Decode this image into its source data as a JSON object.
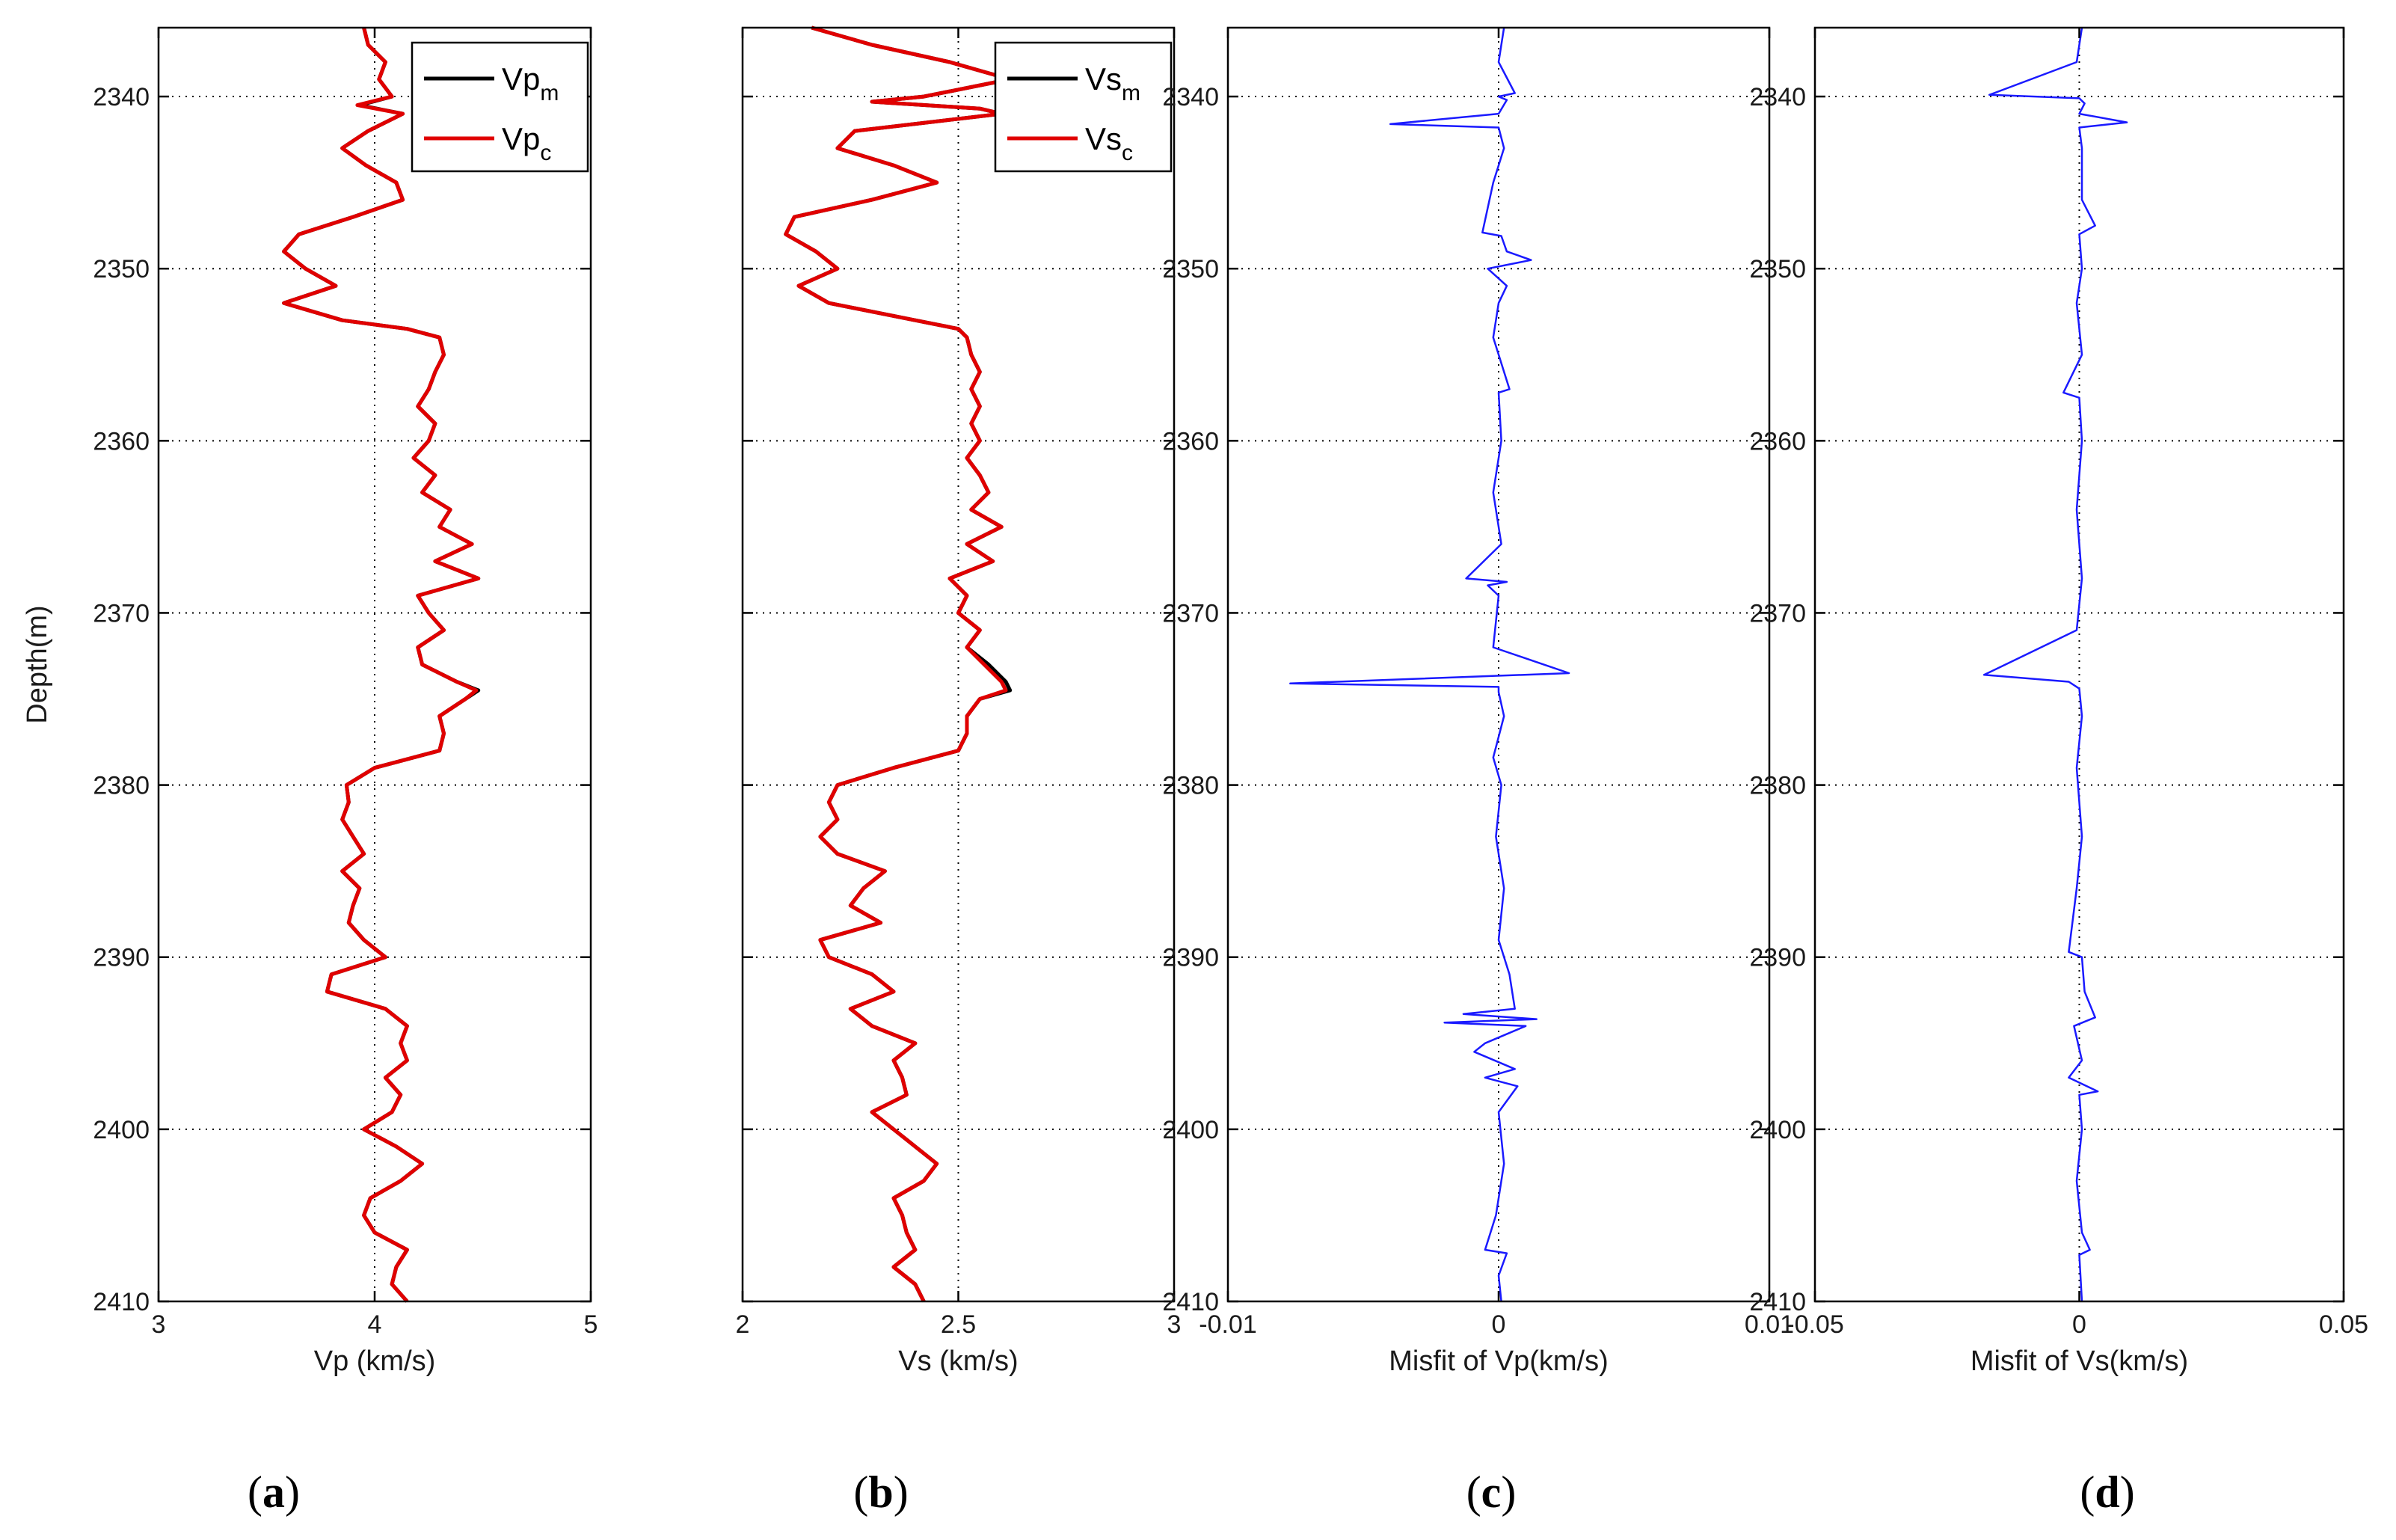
{
  "figure": {
    "ylabel": "Depth(m)",
    "colors": {
      "measured": "#000000",
      "computed": "#e00000",
      "misfit": "#1a1aff",
      "grid": "#000000"
    }
  },
  "chart_data": [
    {
      "id": "a",
      "type": "line",
      "panel_label": "(a)",
      "panel_letter": "a",
      "xlabel": "Vp (km/s)",
      "ylabel": "Depth(m)",
      "xlim": [
        3,
        5
      ],
      "ylim": [
        2336,
        2410
      ],
      "y_reversed": true,
      "xticks": [
        3,
        4,
        5
      ],
      "xtick_labels": [
        "3",
        "4",
        "5"
      ],
      "yticks": [
        2340,
        2350,
        2360,
        2370,
        2380,
        2390,
        2400,
        2410
      ],
      "ytick_labels": [
        "2340",
        "2350",
        "2360",
        "2370",
        "2380",
        "2390",
        "2400",
        "2410"
      ],
      "grid": true,
      "legend": {
        "position": "top-right",
        "entries": [
          {
            "base": "Vp",
            "sub": "m",
            "color": "#000000"
          },
          {
            "base": "Vp",
            "sub": "c",
            "color": "#e00000"
          }
        ]
      },
      "depth": [
        2336,
        2337,
        2338,
        2339,
        2340,
        2340.5,
        2341,
        2342,
        2343,
        2344,
        2345,
        2346,
        2347,
        2348,
        2349,
        2350,
        2351,
        2352,
        2353,
        2353.5,
        2354,
        2355,
        2356,
        2357,
        2358,
        2359,
        2360,
        2361,
        2362,
        2363,
        2364,
        2365,
        2366,
        2367,
        2368,
        2369,
        2370,
        2371,
        2372,
        2373,
        2374,
        2374.5,
        2375,
        2376,
        2377,
        2378,
        2379,
        2380,
        2381,
        2382,
        2383,
        2384,
        2385,
        2386,
        2387,
        2388,
        2389,
        2390,
        2391,
        2392,
        2393,
        2394,
        2395,
        2396,
        2397,
        2398,
        2399,
        2400,
        2401,
        2402,
        2403,
        2404,
        2405,
        2406,
        2407,
        2408,
        2409,
        2410
      ],
      "series": [
        {
          "name": "Vp_m",
          "values": [
            3.95,
            3.97,
            4.05,
            4.02,
            4.08,
            3.93,
            4.13,
            3.97,
            3.85,
            3.96,
            4.1,
            4.13,
            3.9,
            3.65,
            3.58,
            3.68,
            3.82,
            3.58,
            3.85,
            4.15,
            4.3,
            4.32,
            4.28,
            4.25,
            4.2,
            4.28,
            4.25,
            4.18,
            4.28,
            4.22,
            4.35,
            4.3,
            4.45,
            4.28,
            4.48,
            4.2,
            4.25,
            4.32,
            4.2,
            4.22,
            4.38,
            4.48,
            4.42,
            4.3,
            4.32,
            4.3,
            4.0,
            3.87,
            3.88,
            3.85,
            3.9,
            3.95,
            3.85,
            3.93,
            3.9,
            3.88,
            3.95,
            4.05,
            3.8,
            3.78,
            4.05,
            4.15,
            4.12,
            4.15,
            4.05,
            4.12,
            4.08,
            3.95,
            4.1,
            4.22,
            4.12,
            3.98,
            3.95,
            4.0,
            4.15,
            4.1,
            4.08,
            4.15
          ]
        },
        {
          "name": "Vp_c",
          "values": [
            3.95,
            3.97,
            4.05,
            4.02,
            4.08,
            3.92,
            4.13,
            3.97,
            3.85,
            3.96,
            4.1,
            4.13,
            3.9,
            3.65,
            3.58,
            3.68,
            3.82,
            3.58,
            3.85,
            4.15,
            4.3,
            4.32,
            4.28,
            4.25,
            4.2,
            4.28,
            4.25,
            4.18,
            4.28,
            4.22,
            4.35,
            4.3,
            4.45,
            4.28,
            4.48,
            4.2,
            4.25,
            4.32,
            4.2,
            4.22,
            4.38,
            4.47,
            4.42,
            4.3,
            4.32,
            4.3,
            4.0,
            3.87,
            3.88,
            3.85,
            3.9,
            3.95,
            3.85,
            3.93,
            3.9,
            3.88,
            3.95,
            4.05,
            3.8,
            3.78,
            4.05,
            4.15,
            4.12,
            4.15,
            4.05,
            4.12,
            4.08,
            3.95,
            4.1,
            4.22,
            4.12,
            3.98,
            3.95,
            4.0,
            4.15,
            4.1,
            4.08,
            4.15
          ]
        }
      ]
    },
    {
      "id": "b",
      "type": "line",
      "panel_label": "(b)",
      "panel_letter": "b",
      "xlabel": "Vs (km/s)",
      "ylabel": "",
      "xlim": [
        2,
        3
      ],
      "ylim": [
        2336,
        2410
      ],
      "y_reversed": true,
      "xticks": [
        2,
        2.5,
        3
      ],
      "xtick_labels": [
        "2",
        "2.5",
        "3"
      ],
      "yticks": [
        2340,
        2350,
        2360,
        2370,
        2380,
        2390,
        2400,
        2410
      ],
      "ytick_labels": [],
      "grid": true,
      "legend": {
        "position": "top-right",
        "entries": [
          {
            "base": "Vs",
            "sub": "m",
            "color": "#000000"
          },
          {
            "base": "Vs",
            "sub": "c",
            "color": "#e00000"
          }
        ]
      },
      "depth": [
        2336,
        2337,
        2338,
        2339,
        2340,
        2340.3,
        2340.7,
        2341,
        2342,
        2343,
        2344,
        2345,
        2346,
        2347,
        2348,
        2349,
        2350,
        2351,
        2352,
        2353,
        2353.5,
        2354,
        2355,
        2356,
        2357,
        2358,
        2359,
        2360,
        2361,
        2362,
        2363,
        2364,
        2365,
        2366,
        2367,
        2368,
        2369,
        2370,
        2371,
        2372,
        2373,
        2374,
        2374.5,
        2375,
        2376,
        2377,
        2378,
        2379,
        2380,
        2381,
        2382,
        2383,
        2384,
        2385,
        2386,
        2387,
        2388,
        2389,
        2390,
        2391,
        2392,
        2393,
        2394,
        2395,
        2396,
        2397,
        2398,
        2399,
        2400,
        2401,
        2402,
        2403,
        2404,
        2405,
        2406,
        2407,
        2408,
        2409,
        2410
      ],
      "series": [
        {
          "name": "Vs_m",
          "values": [
            2.16,
            2.3,
            2.48,
            2.62,
            2.42,
            2.3,
            2.55,
            2.6,
            2.26,
            2.22,
            2.35,
            2.45,
            2.3,
            2.12,
            2.1,
            2.17,
            2.22,
            2.13,
            2.2,
            2.4,
            2.5,
            2.52,
            2.53,
            2.55,
            2.53,
            2.55,
            2.53,
            2.55,
            2.52,
            2.55,
            2.57,
            2.53,
            2.6,
            2.52,
            2.58,
            2.48,
            2.52,
            2.5,
            2.55,
            2.52,
            2.57,
            2.61,
            2.62,
            2.55,
            2.52,
            2.52,
            2.5,
            2.35,
            2.22,
            2.2,
            2.22,
            2.18,
            2.22,
            2.33,
            2.28,
            2.25,
            2.32,
            2.18,
            2.2,
            2.3,
            2.35,
            2.25,
            2.3,
            2.4,
            2.35,
            2.37,
            2.38,
            2.3,
            2.35,
            2.4,
            2.45,
            2.42,
            2.35,
            2.37,
            2.38,
            2.4,
            2.35,
            2.4,
            2.42
          ]
        },
        {
          "name": "Vs_c",
          "values": [
            2.16,
            2.3,
            2.48,
            2.62,
            2.42,
            2.3,
            2.55,
            2.6,
            2.26,
            2.22,
            2.35,
            2.45,
            2.3,
            2.12,
            2.1,
            2.17,
            2.22,
            2.13,
            2.2,
            2.4,
            2.5,
            2.52,
            2.53,
            2.55,
            2.53,
            2.55,
            2.53,
            2.55,
            2.52,
            2.55,
            2.57,
            2.53,
            2.6,
            2.52,
            2.58,
            2.48,
            2.52,
            2.5,
            2.55,
            2.52,
            2.56,
            2.6,
            2.61,
            2.55,
            2.52,
            2.52,
            2.5,
            2.35,
            2.22,
            2.2,
            2.22,
            2.18,
            2.22,
            2.33,
            2.28,
            2.25,
            2.32,
            2.18,
            2.2,
            2.3,
            2.35,
            2.25,
            2.3,
            2.4,
            2.35,
            2.37,
            2.38,
            2.3,
            2.35,
            2.4,
            2.45,
            2.42,
            2.35,
            2.37,
            2.38,
            2.4,
            2.35,
            2.4,
            2.42
          ]
        }
      ]
    },
    {
      "id": "c",
      "type": "line",
      "panel_label": "(c)",
      "panel_letter": "c",
      "xlabel": "Misfit of Vp(km/s)",
      "ylabel": "",
      "xlim": [
        -0.01,
        0.01
      ],
      "ylim": [
        2336,
        2410
      ],
      "y_reversed": true,
      "xticks": [
        -0.01,
        0,
        0.01
      ],
      "xtick_labels": [
        "-0.01",
        "0",
        "0.01"
      ],
      "yticks": [
        2340,
        2350,
        2360,
        2370,
        2380,
        2390,
        2400,
        2410
      ],
      "ytick_labels": [
        "2340",
        "2350",
        "2360",
        "2370",
        "2380",
        "2390",
        "2400",
        "2410"
      ],
      "grid": true,
      "depth": [
        2336,
        2338,
        2339.8,
        2340,
        2340.2,
        2341,
        2341.6,
        2341.8,
        2343,
        2345,
        2347.9,
        2348.1,
        2349,
        2349.5,
        2350,
        2351,
        2352,
        2354,
        2357,
        2357.2,
        2360,
        2363,
        2366,
        2368,
        2368.2,
        2368.4,
        2369,
        2372,
        2373.5,
        2374.1,
        2374.3,
        2374.6,
        2376,
        2378.4,
        2380,
        2383,
        2386,
        2389,
        2391,
        2393,
        2393.3,
        2393.6,
        2393.8,
        2394,
        2395,
        2395.5,
        2396.5,
        2397,
        2397.5,
        2399,
        2402,
        2405,
        2407,
        2407.2,
        2408.5,
        2410
      ],
      "series": [
        {
          "name": "Misfit Vp",
          "values": [
            0.0002,
            0.0,
            0.0006,
            0.0,
            0.0003,
            0.0,
            -0.004,
            0.0,
            0.0002,
            -0.0002,
            -0.0006,
            0.0001,
            0.0003,
            0.0012,
            -0.0004,
            0.0003,
            0.0,
            -0.0002,
            0.0004,
            0.0,
            0.0001,
            -0.0002,
            0.0001,
            -0.0012,
            0.0003,
            -0.0004,
            0.0,
            -0.0002,
            0.0026,
            -0.0077,
            0.0,
            0.0,
            0.0002,
            -0.0002,
            0.0001,
            -0.0001,
            0.0002,
            0.0,
            0.0004,
            0.0006,
            -0.0013,
            0.0014,
            -0.002,
            0.001,
            -0.0005,
            -0.0009,
            0.0006,
            -0.0005,
            0.0007,
            0.0,
            0.0002,
            -0.0001,
            -0.0005,
            0.0003,
            0.0,
            0.0001
          ]
        }
      ]
    },
    {
      "id": "d",
      "type": "line",
      "panel_label": "(d)",
      "panel_letter": "d",
      "xlabel": "Misfit of Vs(km/s)",
      "ylabel": "",
      "xlim": [
        -0.05,
        0.05
      ],
      "ylim": [
        2336,
        2410
      ],
      "y_reversed": true,
      "xticks": [
        -0.05,
        0,
        0.05
      ],
      "xtick_labels": [
        "-0.05",
        "0",
        "0.05"
      ],
      "yticks": [
        2340,
        2350,
        2360,
        2370,
        2380,
        2390,
        2400,
        2410
      ],
      "ytick_labels": [
        "2340",
        "2350",
        "2360",
        "2370",
        "2380",
        "2390",
        "2400",
        "2410"
      ],
      "grid": true,
      "depth": [
        2336,
        2338,
        2339.9,
        2340.1,
        2340.4,
        2341,
        2341.5,
        2341.8,
        2343,
        2346,
        2347.5,
        2348,
        2350,
        2352,
        2355,
        2357.2,
        2357.5,
        2360,
        2364,
        2368,
        2371,
        2373.6,
        2374,
        2374.4,
        2376,
        2379,
        2383,
        2386,
        2389.7,
        2390,
        2392,
        2393.5,
        2394,
        2396,
        2397,
        2397.8,
        2398,
        2400,
        2403,
        2406,
        2407,
        2407.3,
        2410
      ],
      "series": [
        {
          "name": "Misfit Vs",
          "values": [
            0.0005,
            -0.0005,
            -0.017,
            0.0,
            0.001,
            0.0,
            0.009,
            0.0,
            0.0005,
            0.0005,
            0.003,
            0.0,
            0.0005,
            -0.0005,
            0.0005,
            -0.003,
            0.0,
            0.0005,
            -0.0005,
            0.0005,
            -0.0005,
            -0.018,
            -0.002,
            0.0,
            0.0005,
            -0.0005,
            0.0005,
            -0.0005,
            -0.002,
            0.0005,
            0.001,
            0.003,
            -0.001,
            0.0005,
            -0.002,
            0.0035,
            0.0,
            0.0005,
            -0.0005,
            0.0005,
            0.002,
            0.0,
            0.0005
          ]
        }
      ]
    }
  ]
}
